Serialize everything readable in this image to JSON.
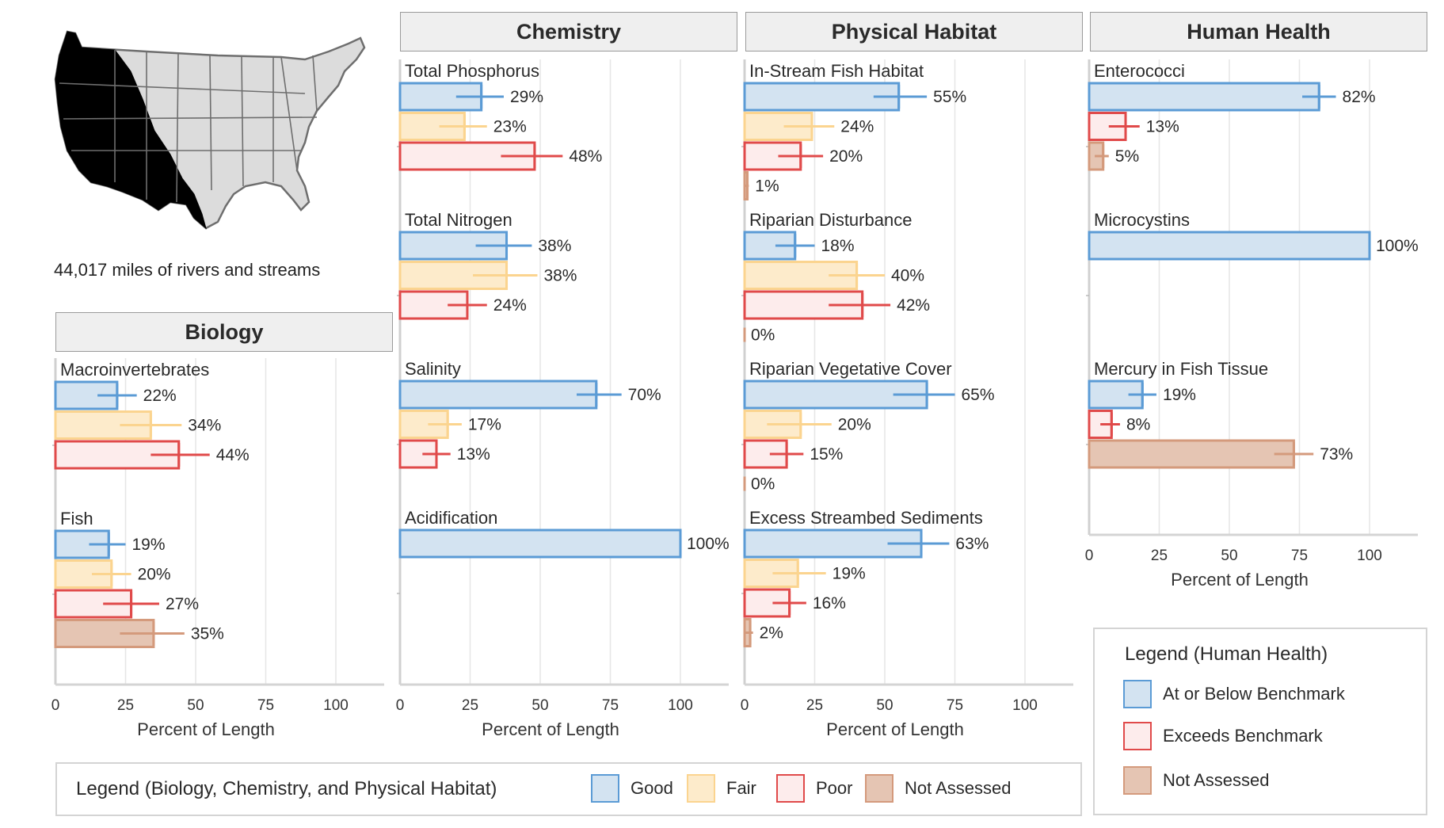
{
  "map": {
    "caption": "44,017 miles of rivers and streams"
  },
  "colors": {
    "Good": {
      "fill": "#d3e3f1",
      "stroke": "#5b9bd5"
    },
    "Fair": {
      "fill": "#fdebcb",
      "stroke": "#fbd48f"
    },
    "Poor": {
      "fill": "#fdecec",
      "stroke": "#e04a4a"
    },
    "Not Assessed": {
      "fill": "#e5c5b3",
      "stroke": "#d49a7c"
    }
  },
  "legend_bio": {
    "title": "Legend (Biology, Chemistry, and Physical Habitat)",
    "items": [
      {
        "label": "Good",
        "key": "Good"
      },
      {
        "label": "Fair",
        "key": "Fair"
      },
      {
        "label": "Poor",
        "key": "Poor"
      },
      {
        "label": "Not Assessed",
        "key": "Not Assessed"
      }
    ]
  },
  "legend_hh": {
    "title": "Legend (Human Health)",
    "items": [
      {
        "label": "At or Below Benchmark",
        "key": "Good"
      },
      {
        "label": "Exceeds Benchmark",
        "key": "Poor"
      },
      {
        "label": "Not Assessed",
        "key": "Not Assessed"
      }
    ]
  },
  "chart_data": [
    {
      "type": "bar",
      "title": "Biology",
      "xlabel": "Percent of Length",
      "xlim": [
        0,
        100
      ],
      "ticks": [
        0,
        25,
        50,
        75,
        100
      ],
      "groups": [
        {
          "name": "Macroinvertebrates",
          "bars": [
            {
              "cat": "Good",
              "value": 22,
              "label": "22%",
              "ci": [
                15,
                29
              ]
            },
            {
              "cat": "Fair",
              "value": 34,
              "label": "34%",
              "ci": [
                23,
                45
              ]
            },
            {
              "cat": "Poor",
              "value": 44,
              "label": "44%",
              "ci": [
                34,
                55
              ]
            }
          ]
        },
        {
          "name": "Fish",
          "bars": [
            {
              "cat": "Good",
              "value": 19,
              "label": "19%",
              "ci": [
                12,
                25
              ]
            },
            {
              "cat": "Fair",
              "value": 20,
              "label": "20%",
              "ci": [
                13,
                27
              ]
            },
            {
              "cat": "Poor",
              "value": 27,
              "label": "27%",
              "ci": [
                17,
                37
              ]
            },
            {
              "cat": "Not Assessed",
              "value": 35,
              "label": "35%",
              "ci": [
                23,
                46
              ]
            }
          ]
        }
      ]
    },
    {
      "type": "bar",
      "title": "Chemistry",
      "xlabel": "Percent of Length",
      "xlim": [
        0,
        100
      ],
      "ticks": [
        0,
        25,
        50,
        75,
        100
      ],
      "groups": [
        {
          "name": "Total Phosphorus",
          "bars": [
            {
              "cat": "Good",
              "value": 29,
              "label": "29%",
              "ci": [
                20,
                37
              ]
            },
            {
              "cat": "Fair",
              "value": 23,
              "label": "23%",
              "ci": [
                14,
                31
              ]
            },
            {
              "cat": "Poor",
              "value": 48,
              "label": "48%",
              "ci": [
                36,
                58
              ]
            }
          ]
        },
        {
          "name": "Total Nitrogen",
          "bars": [
            {
              "cat": "Good",
              "value": 38,
              "label": "38%",
              "ci": [
                27,
                47
              ]
            },
            {
              "cat": "Fair",
              "value": 38,
              "label": "38%",
              "ci": [
                26,
                49
              ]
            },
            {
              "cat": "Poor",
              "value": 24,
              "label": "24%",
              "ci": [
                17,
                31
              ]
            }
          ]
        },
        {
          "name": "Salinity",
          "bars": [
            {
              "cat": "Good",
              "value": 70,
              "label": "70%",
              "ci": [
                63,
                79
              ]
            },
            {
              "cat": "Fair",
              "value": 17,
              "label": "17%",
              "ci": [
                10,
                22
              ]
            },
            {
              "cat": "Poor",
              "value": 13,
              "label": "13%",
              "ci": [
                8,
                18
              ]
            }
          ]
        },
        {
          "name": "Acidification",
          "bars": [
            {
              "cat": "Good",
              "value": 100,
              "label": "100%",
              "ci": null
            }
          ]
        }
      ]
    },
    {
      "type": "bar",
      "title": "Physical Habitat",
      "xlabel": "Percent of Length",
      "xlim": [
        0,
        100
      ],
      "ticks": [
        0,
        25,
        50,
        75,
        100
      ],
      "groups": [
        {
          "name": "In-Stream Fish Habitat",
          "bars": [
            {
              "cat": "Good",
              "value": 55,
              "label": "55%",
              "ci": [
                46,
                65
              ]
            },
            {
              "cat": "Fair",
              "value": 24,
              "label": "24%",
              "ci": [
                14,
                32
              ]
            },
            {
              "cat": "Poor",
              "value": 20,
              "label": "20%",
              "ci": [
                12,
                28
              ]
            },
            {
              "cat": "Not Assessed",
              "value": 1,
              "label": "1%",
              "ci": [
                0,
                1.5
              ]
            }
          ]
        },
        {
          "name": "Riparian Disturbance",
          "bars": [
            {
              "cat": "Good",
              "value": 18,
              "label": "18%",
              "ci": [
                11,
                25
              ]
            },
            {
              "cat": "Fair",
              "value": 40,
              "label": "40%",
              "ci": [
                30,
                50
              ]
            },
            {
              "cat": "Poor",
              "value": 42,
              "label": "42%",
              "ci": [
                30,
                52
              ]
            },
            {
              "cat": "Not Assessed",
              "value": 0,
              "label": "0%",
              "ci": null
            }
          ]
        },
        {
          "name": "Riparian Vegetative Cover",
          "bars": [
            {
              "cat": "Good",
              "value": 65,
              "label": "65%",
              "ci": [
                53,
                75
              ]
            },
            {
              "cat": "Fair",
              "value": 20,
              "label": "20%",
              "ci": [
                8,
                31
              ]
            },
            {
              "cat": "Poor",
              "value": 15,
              "label": "15%",
              "ci": [
                9,
                21
              ]
            },
            {
              "cat": "Not Assessed",
              "value": 0,
              "label": "0%",
              "ci": null
            }
          ]
        },
        {
          "name": "Excess Streambed Sediments",
          "bars": [
            {
              "cat": "Good",
              "value": 63,
              "label": "63%",
              "ci": [
                51,
                73
              ]
            },
            {
              "cat": "Fair",
              "value": 19,
              "label": "19%",
              "ci": [
                10,
                29
              ]
            },
            {
              "cat": "Poor",
              "value": 16,
              "label": "16%",
              "ci": [
                10,
                22
              ]
            },
            {
              "cat": "Not Assessed",
              "value": 2,
              "label": "2%",
              "ci": [
                0,
                3
              ]
            }
          ]
        }
      ]
    },
    {
      "type": "bar",
      "title": "Human Health",
      "xlabel": "Percent of Length",
      "xlim": [
        0,
        100
      ],
      "ticks": [
        0,
        25,
        50,
        75,
        100
      ],
      "groups": [
        {
          "name": "Enterococci",
          "bars": [
            {
              "cat": "Good",
              "value": 82,
              "label": "82%",
              "ci": [
                76,
                88
              ]
            },
            {
              "cat": "Poor",
              "value": 13,
              "label": "13%",
              "ci": [
                7,
                18
              ]
            },
            {
              "cat": "Not Assessed",
              "value": 5,
              "label": "5%",
              "ci": [
                2,
                7
              ]
            }
          ]
        },
        {
          "name": "Microcystins",
          "bars": [
            {
              "cat": "Good",
              "value": 100,
              "label": "100%",
              "ci": null
            }
          ]
        },
        {
          "name": "Mercury in Fish Tissue",
          "bars": [
            {
              "cat": "Good",
              "value": 19,
              "label": "19%",
              "ci": [
                14,
                24
              ]
            },
            {
              "cat": "Poor",
              "value": 8,
              "label": "8%",
              "ci": [
                4,
                11
              ]
            },
            {
              "cat": "Not Assessed",
              "value": 73,
              "label": "73%",
              "ci": [
                66,
                80
              ]
            }
          ]
        }
      ]
    }
  ]
}
